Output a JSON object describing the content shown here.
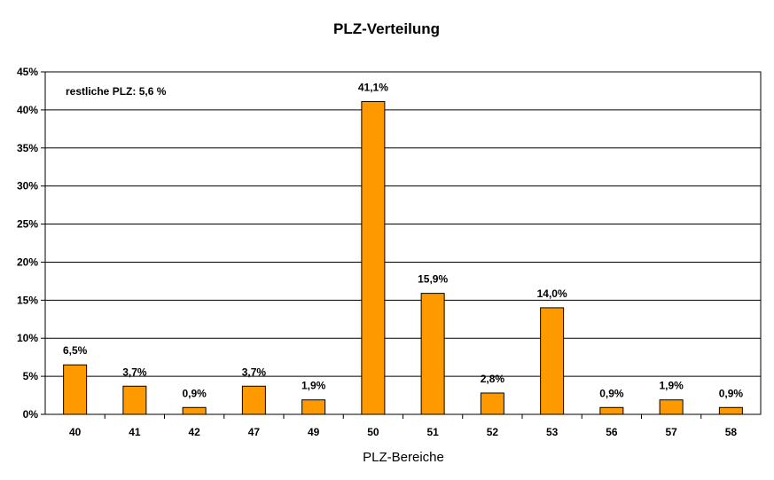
{
  "chart_data": {
    "type": "bar",
    "title": "PLZ-Verteilung",
    "xlabel": "PLZ-Bereiche",
    "ylabel": "",
    "ylim": [
      0,
      45
    ],
    "yticks": [
      "0%",
      "5%",
      "10%",
      "15%",
      "20%",
      "25%",
      "30%",
      "35%",
      "40%",
      "45%"
    ],
    "categories": [
      "40",
      "41",
      "42",
      "47",
      "49",
      "50",
      "51",
      "52",
      "53",
      "56",
      "57",
      "58"
    ],
    "values": [
      6.5,
      3.7,
      0.9,
      3.7,
      1.9,
      41.1,
      15.9,
      2.8,
      14.0,
      0.9,
      1.9,
      0.9
    ],
    "data_labels": [
      "6,5%",
      "3,7%",
      "0,9%",
      "3,7%",
      "1,9%",
      "41,1%",
      "15,9%",
      "2,8%",
      "14,0%",
      "0,9%",
      "1,9%",
      "0,9%"
    ],
    "annotation": "restliche PLZ: 5,6 %",
    "bar_color": "#FF9900",
    "grid": true,
    "legend": "none"
  }
}
